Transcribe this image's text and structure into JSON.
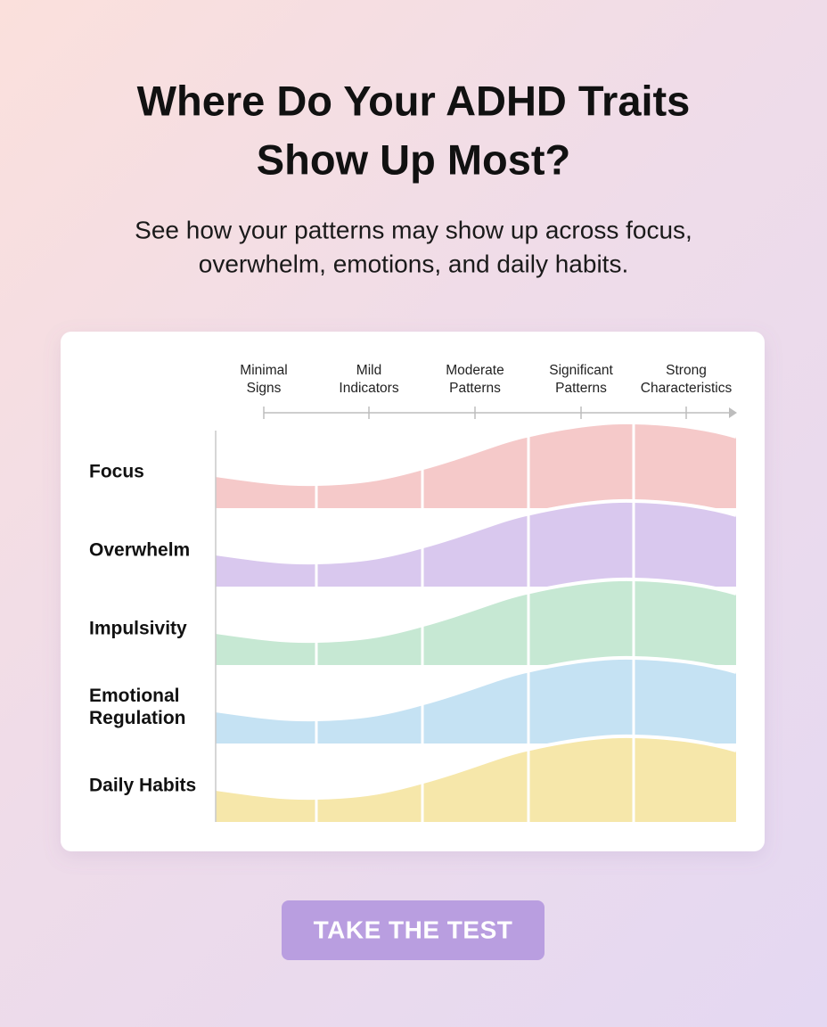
{
  "header": {
    "title": [
      "Where Do Your ADHD Traits",
      "Show Up Most?"
    ],
    "subtitle": [
      "See how your patterns may show up across focus,",
      "overwhelm, emotions, and daily habits."
    ]
  },
  "scale": {
    "levels": [
      [
        "Minimal",
        "Signs"
      ],
      [
        "Mild",
        "Indicators"
      ],
      [
        "Moderate",
        "Patterns"
      ],
      [
        "Significant",
        "Patterns"
      ],
      [
        "Strong",
        "Characteristics"
      ]
    ]
  },
  "rows": [
    [
      "Focus"
    ],
    [
      "Overwhelm"
    ],
    [
      "Impulsivity"
    ],
    [
      "Emotional",
      "Regulation"
    ],
    [
      "Daily Habits"
    ]
  ],
  "button": {
    "label": "TAKE THE TEST"
  }
}
